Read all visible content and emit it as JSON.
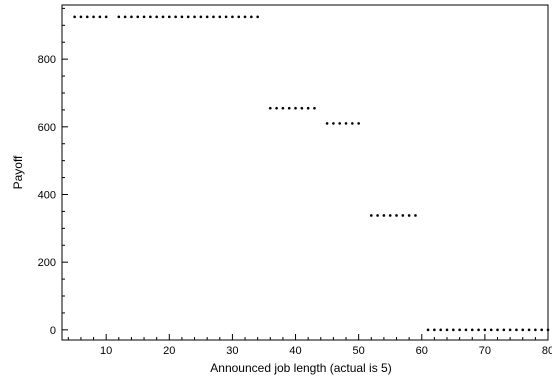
{
  "chart_data": {
    "type": "scatter",
    "title": "",
    "xlabel": "Announced job length (actual is 5)",
    "ylabel": "Payoff",
    "xlim": [
      3,
      80
    ],
    "ylim": [
      -30,
      960
    ],
    "xticks": [
      10,
      20,
      30,
      40,
      50,
      60,
      70,
      80
    ],
    "yticks": [
      0,
      200,
      400,
      600,
      800
    ],
    "x_minor_step": 2,
    "y_minor_step": 50,
    "grid": false,
    "marker_color": "#000000",
    "series": [
      {
        "points": [
          {
            "x": 5,
            "y": 925
          },
          {
            "x": 6,
            "y": 925
          },
          {
            "x": 7,
            "y": 925
          },
          {
            "x": 8,
            "y": 925
          },
          {
            "x": 9,
            "y": 925
          },
          {
            "x": 10,
            "y": 925
          },
          {
            "x": 12,
            "y": 925
          },
          {
            "x": 13,
            "y": 925
          },
          {
            "x": 14,
            "y": 925
          },
          {
            "x": 15,
            "y": 925
          },
          {
            "x": 16,
            "y": 925
          },
          {
            "x": 17,
            "y": 925
          },
          {
            "x": 18,
            "y": 925
          },
          {
            "x": 19,
            "y": 925
          },
          {
            "x": 20,
            "y": 925
          },
          {
            "x": 21,
            "y": 925
          },
          {
            "x": 22,
            "y": 925
          },
          {
            "x": 23,
            "y": 925
          },
          {
            "x": 24,
            "y": 925
          },
          {
            "x": 25,
            "y": 925
          },
          {
            "x": 26,
            "y": 925
          },
          {
            "x": 27,
            "y": 925
          },
          {
            "x": 28,
            "y": 925
          },
          {
            "x": 29,
            "y": 925
          },
          {
            "x": 30,
            "y": 925
          },
          {
            "x": 31,
            "y": 925
          },
          {
            "x": 32,
            "y": 925
          },
          {
            "x": 33,
            "y": 925
          },
          {
            "x": 34,
            "y": 925
          },
          {
            "x": 36,
            "y": 655
          },
          {
            "x": 37,
            "y": 655
          },
          {
            "x": 38,
            "y": 655
          },
          {
            "x": 39,
            "y": 655
          },
          {
            "x": 40,
            "y": 655
          },
          {
            "x": 41,
            "y": 655
          },
          {
            "x": 42,
            "y": 655
          },
          {
            "x": 43,
            "y": 655
          },
          {
            "x": 45,
            "y": 610
          },
          {
            "x": 46,
            "y": 610
          },
          {
            "x": 47,
            "y": 610
          },
          {
            "x": 48,
            "y": 610
          },
          {
            "x": 49,
            "y": 610
          },
          {
            "x": 50,
            "y": 610
          },
          {
            "x": 52,
            "y": 338
          },
          {
            "x": 53,
            "y": 338
          },
          {
            "x": 54,
            "y": 338
          },
          {
            "x": 55,
            "y": 338
          },
          {
            "x": 56,
            "y": 338
          },
          {
            "x": 57,
            "y": 338
          },
          {
            "x": 58,
            "y": 338
          },
          {
            "x": 59,
            "y": 338
          },
          {
            "x": 61,
            "y": 0
          },
          {
            "x": 62,
            "y": 0
          },
          {
            "x": 63,
            "y": 0
          },
          {
            "x": 64,
            "y": 0
          },
          {
            "x": 65,
            "y": 0
          },
          {
            "x": 66,
            "y": 0
          },
          {
            "x": 67,
            "y": 0
          },
          {
            "x": 68,
            "y": 0
          },
          {
            "x": 69,
            "y": 0
          },
          {
            "x": 70,
            "y": 0
          },
          {
            "x": 71,
            "y": 0
          },
          {
            "x": 72,
            "y": 0
          },
          {
            "x": 73,
            "y": 0
          },
          {
            "x": 74,
            "y": 0
          },
          {
            "x": 75,
            "y": 0
          },
          {
            "x": 76,
            "y": 0
          },
          {
            "x": 77,
            "y": 0
          },
          {
            "x": 78,
            "y": 0
          },
          {
            "x": 79,
            "y": 0
          },
          {
            "x": 80,
            "y": 0
          }
        ]
      }
    ]
  }
}
